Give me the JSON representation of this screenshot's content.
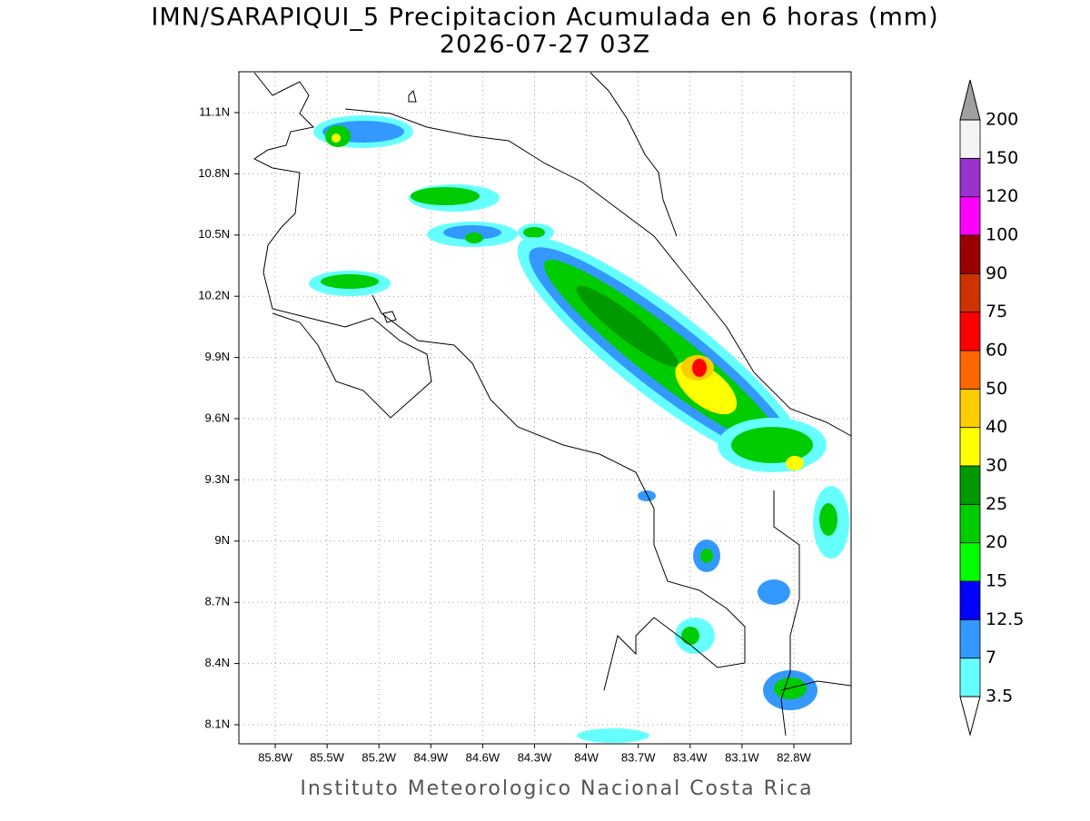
{
  "title": [
    "IMN/SARAPIQUI_5 Precipitacion Acumulada en 6 horas (mm)",
    "2026-07-27 03Z"
  ],
  "map": {
    "lat_labels": [
      "11.1N",
      "10.8N",
      "10.5N",
      "10.2N",
      "9.9N",
      "9.6N",
      "9.3N",
      "9N",
      "8.7N",
      "8.4N",
      "8.1N"
    ],
    "lon_labels": [
      "85.8W",
      "85.5W",
      "85.2W",
      "84.9W",
      "84.6W",
      "84.3W",
      "84W",
      "83.7W",
      "83.4W",
      "83.1W",
      "82.8W"
    ]
  },
  "colorbar": {
    "levels": [
      3.5,
      7,
      12.5,
      15,
      20,
      25,
      30,
      40,
      50,
      60,
      75,
      90,
      100,
      120,
      150,
      200
    ],
    "colors": [
      "#66ffff",
      "#3399ff",
      "#0000ff",
      "#00ff00",
      "#00cc00",
      "#009900",
      "#ffff00",
      "#ffcc00",
      "#ff6600",
      "#ff0000",
      "#cc3300",
      "#990000",
      "#ff00ff",
      "#9933cc",
      "#f4f4f4"
    ],
    "under_color": "#ffffff",
    "over_color": "#a0a0a0"
  },
  "footer": "Instituto Meteorologico Nacional Costa Rica"
}
